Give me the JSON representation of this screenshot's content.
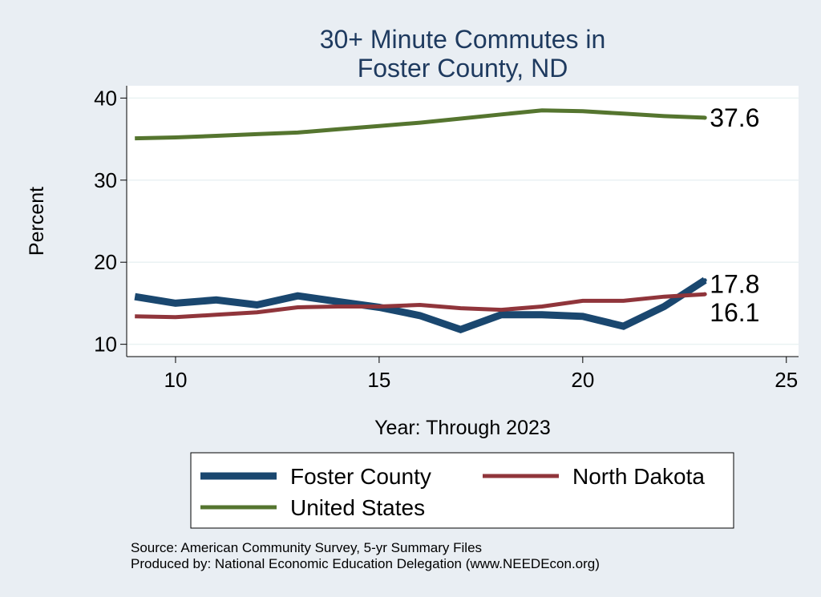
{
  "colors": {
    "background": "#e9eef3",
    "plot_background": "#ffffff",
    "foster": "#1a476f",
    "north_dakota": "#90353b",
    "united_states": "#55752f",
    "title": "#1e3a5f"
  },
  "chart_data": {
    "type": "line",
    "title": [
      "30+ Minute Commutes in",
      "Foster County, ND"
    ],
    "xlabel": "Year: Through 2023",
    "ylabel": "Percent",
    "xlim": [
      8.8,
      25.3
    ],
    "ylim": [
      8.5,
      41.5
    ],
    "xticks": [
      10,
      15,
      20,
      25
    ],
    "yticks": [
      10,
      20,
      30,
      40
    ],
    "grid": true,
    "x": [
      9,
      10,
      11,
      12,
      13,
      14,
      15,
      16,
      17,
      18,
      19,
      20,
      21,
      22,
      23
    ],
    "series": [
      {
        "name": "Foster County",
        "color_key": "foster",
        "width": 9,
        "values": [
          15.8,
          15.0,
          15.4,
          14.8,
          15.9,
          15.2,
          14.5,
          13.5,
          11.8,
          13.6,
          13.6,
          13.4,
          12.2,
          14.6,
          17.8
        ],
        "end_label": "17.8"
      },
      {
        "name": "North Dakota",
        "color_key": "north_dakota",
        "width": 5,
        "values": [
          13.4,
          13.3,
          13.6,
          13.9,
          14.5,
          14.6,
          14.6,
          14.8,
          14.4,
          14.2,
          14.6,
          15.3,
          15.3,
          15.8,
          16.1
        ],
        "end_label": "16.1"
      },
      {
        "name": "United States",
        "color_key": "united_states",
        "width": 5,
        "values": [
          35.1,
          35.2,
          35.4,
          35.6,
          35.8,
          36.2,
          36.6,
          37.0,
          37.5,
          38.0,
          38.5,
          38.4,
          38.1,
          37.8,
          37.6
        ],
        "end_label": "37.6"
      }
    ],
    "legend": {
      "placement": "bottom",
      "items": [
        "Foster County",
        "North Dakota",
        "United States"
      ]
    }
  },
  "notes": [
    "Source: American Community Survey, 5-yr Summary Files",
    "Produced by: National Economic Education Delegation (www.NEEDEcon.org)"
  ]
}
